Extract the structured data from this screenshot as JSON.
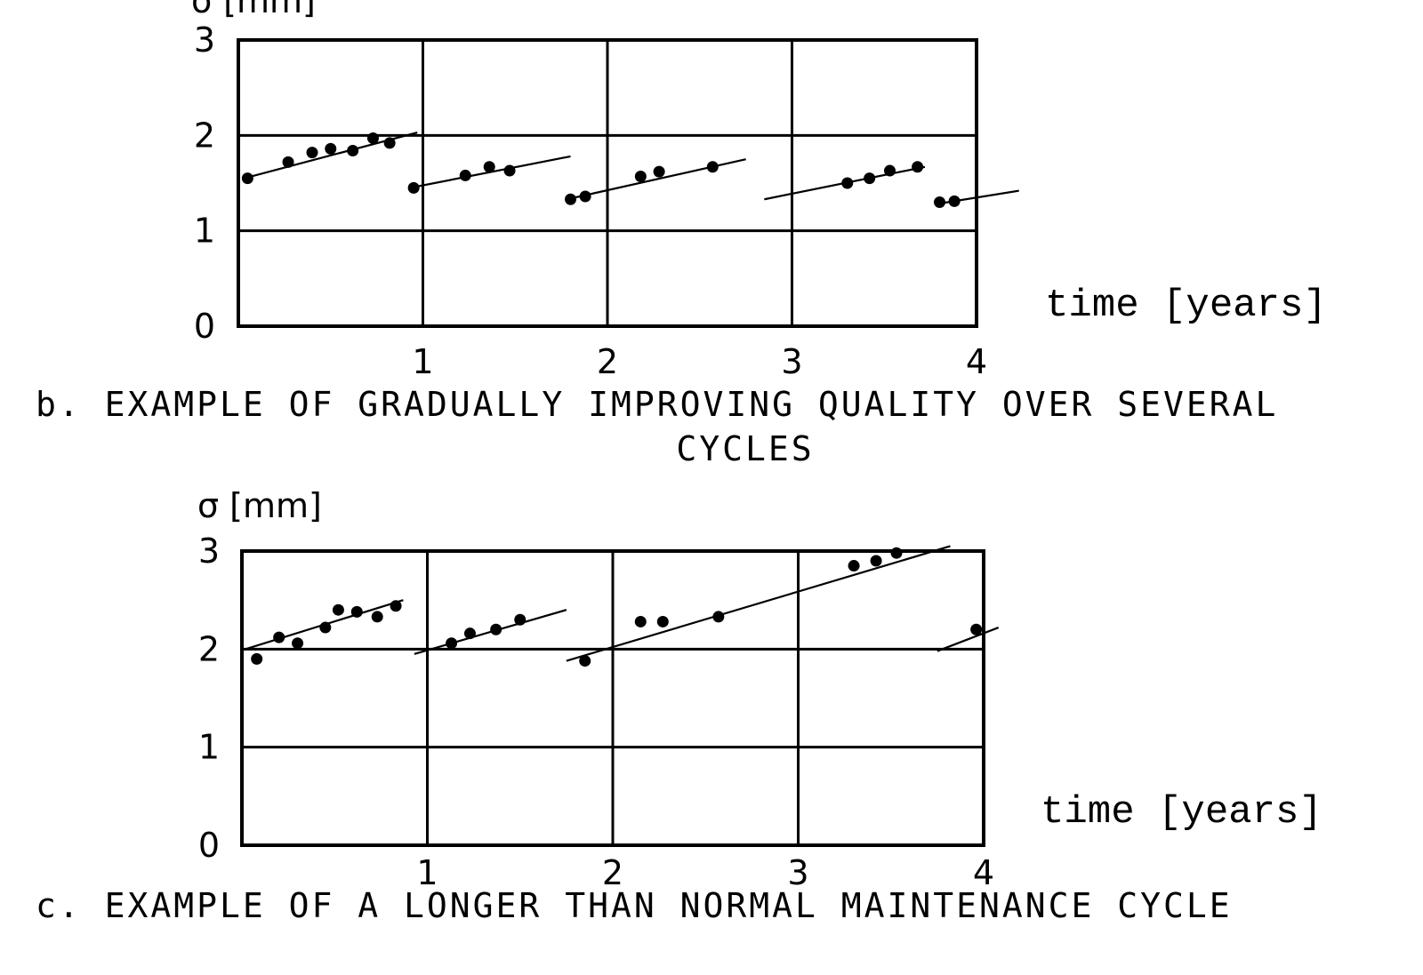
{
  "chart_data": [
    {
      "panel": "b",
      "type": "scatter",
      "ylabel": "σ [mm]",
      "xlabel": "time [years]",
      "xlim": [
        0,
        4
      ],
      "ylim": [
        0,
        3
      ],
      "xticks": [
        "1",
        "2",
        "3",
        "4"
      ],
      "yticks": [
        "0",
        "1",
        "2",
        "3"
      ],
      "grid": true,
      "caption": [
        "b. EXAMPLE OF GRADUALLY IMPROVING QUALITY OVER SEVERAL",
        "CYCLES"
      ],
      "points": [
        {
          "x": 0.05,
          "y": 1.55
        },
        {
          "x": 0.27,
          "y": 1.72
        },
        {
          "x": 0.4,
          "y": 1.82
        },
        {
          "x": 0.5,
          "y": 1.86
        },
        {
          "x": 0.62,
          "y": 1.84
        },
        {
          "x": 0.73,
          "y": 1.97
        },
        {
          "x": 0.82,
          "y": 1.92
        },
        {
          "x": 0.95,
          "y": 1.45
        },
        {
          "x": 1.23,
          "y": 1.58
        },
        {
          "x": 1.36,
          "y": 1.67
        },
        {
          "x": 1.47,
          "y": 1.63
        },
        {
          "x": 1.8,
          "y": 1.33
        },
        {
          "x": 1.88,
          "y": 1.36
        },
        {
          "x": 2.18,
          "y": 1.57
        },
        {
          "x": 2.28,
          "y": 1.62
        },
        {
          "x": 2.57,
          "y": 1.67
        },
        {
          "x": 3.3,
          "y": 1.5
        },
        {
          "x": 3.42,
          "y": 1.55
        },
        {
          "x": 3.53,
          "y": 1.63
        },
        {
          "x": 3.68,
          "y": 1.67
        },
        {
          "x": 3.8,
          "y": 1.3
        },
        {
          "x": 3.88,
          "y": 1.31
        }
      ],
      "fit_lines": [
        {
          "x": [
            0.03,
            0.97
          ],
          "y": [
            1.55,
            2.03
          ]
        },
        {
          "x": [
            0.93,
            1.8
          ],
          "y": [
            1.45,
            1.78
          ]
        },
        {
          "x": [
            1.78,
            2.75
          ],
          "y": [
            1.33,
            1.75
          ]
        },
        {
          "x": [
            2.85,
            3.72
          ],
          "y": [
            1.33,
            1.67
          ]
        },
        {
          "x": [
            3.78,
            4.23
          ],
          "y": [
            1.28,
            1.42
          ]
        }
      ]
    },
    {
      "panel": "c",
      "type": "scatter",
      "ylabel": "σ [mm]",
      "xlabel": "time [years]",
      "xlim": [
        0,
        4
      ],
      "ylim": [
        0,
        3
      ],
      "xticks": [
        "1",
        "2",
        "3",
        "4"
      ],
      "yticks": [
        "0",
        "1",
        "2",
        "3"
      ],
      "grid": true,
      "caption": [
        "c. EXAMPLE OF A LONGER THAN NORMAL MAINTENANCE CYCLE"
      ],
      "points": [
        {
          "x": 0.08,
          "y": 1.9
        },
        {
          "x": 0.2,
          "y": 2.12
        },
        {
          "x": 0.3,
          "y": 2.06
        },
        {
          "x": 0.45,
          "y": 2.22
        },
        {
          "x": 0.52,
          "y": 2.4
        },
        {
          "x": 0.62,
          "y": 2.38
        },
        {
          "x": 0.73,
          "y": 2.33
        },
        {
          "x": 0.83,
          "y": 2.44
        },
        {
          "x": 1.13,
          "y": 2.06
        },
        {
          "x": 1.23,
          "y": 2.16
        },
        {
          "x": 1.37,
          "y": 2.2
        },
        {
          "x": 1.5,
          "y": 2.3
        },
        {
          "x": 1.85,
          "y": 1.88
        },
        {
          "x": 2.15,
          "y": 2.28
        },
        {
          "x": 2.27,
          "y": 2.28
        },
        {
          "x": 2.57,
          "y": 2.33
        },
        {
          "x": 3.3,
          "y": 2.85
        },
        {
          "x": 3.42,
          "y": 2.9
        },
        {
          "x": 3.53,
          "y": 2.98
        },
        {
          "x": 3.96,
          "y": 2.2
        }
      ],
      "fit_lines": [
        {
          "x": [
            0.02,
            0.87
          ],
          "y": [
            2.0,
            2.5
          ]
        },
        {
          "x": [
            0.93,
            1.75
          ],
          "y": [
            1.95,
            2.4
          ]
        },
        {
          "x": [
            1.75,
            3.82
          ],
          "y": [
            1.88,
            3.05
          ]
        },
        {
          "x": [
            3.75,
            4.08
          ],
          "y": [
            1.98,
            2.22
          ]
        }
      ]
    }
  ]
}
